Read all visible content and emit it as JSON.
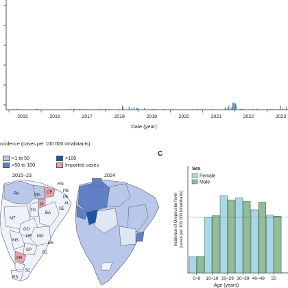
{
  "colors": {
    "bar_daily": "#1f5e9a",
    "female": "#a8d8e8",
    "male": "#8fbf96",
    "dark_blue": "#1a55a8",
    "mid_blue": "#5f7fc6",
    "light_blue": "#b9c7ea",
    "imported": "#eaa3a8"
  },
  "panel_a": {
    "x_label": "Date (year)",
    "year_ticks": [
      "2015",
      "2016",
      "2017",
      "2018",
      "2019",
      "2020",
      "2021",
      "2022",
      "2023"
    ]
  },
  "panel_b": {
    "legend_title": "ncidence (cases per 100 000 inhabitants)",
    "legend": [
      {
        "label": ">1 to 50",
        "color": "#b9c7ea"
      },
      {
        "label": ">100",
        "color": "#1a55a8"
      },
      {
        "label": ">50 to 100",
        "color": "#5f7fc6"
      },
      {
        "label": "Imported cases",
        "color": "#eaa3a8"
      }
    ],
    "map_years": [
      "2015–23",
      "2024"
    ],
    "state_labels": [
      "PA",
      "MA",
      "CE",
      "RN",
      "PB",
      "PE",
      "AL",
      "SE",
      "BA",
      "TO",
      "PI",
      "MT",
      "GO",
      "DF",
      "MG",
      "MS",
      "SP",
      "ES",
      "RJ",
      "PR",
      "SC",
      "RS"
    ]
  },
  "panel_c": {
    "panel_label": "C"
  },
  "chart_data": [
    {
      "type": "bar",
      "title": "",
      "xlabel": "Age (years)",
      "ylabel": "Incidence of Oropouche fever (cases per 100 000 inhabitants)",
      "legend_title": "Sex",
      "legend_position": "top-left",
      "categories": [
        "0–9",
        "10–19",
        "20–29",
        "30–39",
        "40–49",
        "50"
      ],
      "series": [
        {
          "name": "Female",
          "color": "#a8d8e8",
          "values": [
            1.5,
            5.2,
            7.2,
            7.0,
            5.9,
            5.4
          ]
        },
        {
          "name": "Male",
          "color": "#8fbf96",
          "values": [
            1.55,
            5.35,
            6.8,
            6.7,
            6.6,
            5.3
          ]
        }
      ],
      "reference_line": 5.2,
      "ylim": [
        0,
        10
      ]
    }
  ]
}
